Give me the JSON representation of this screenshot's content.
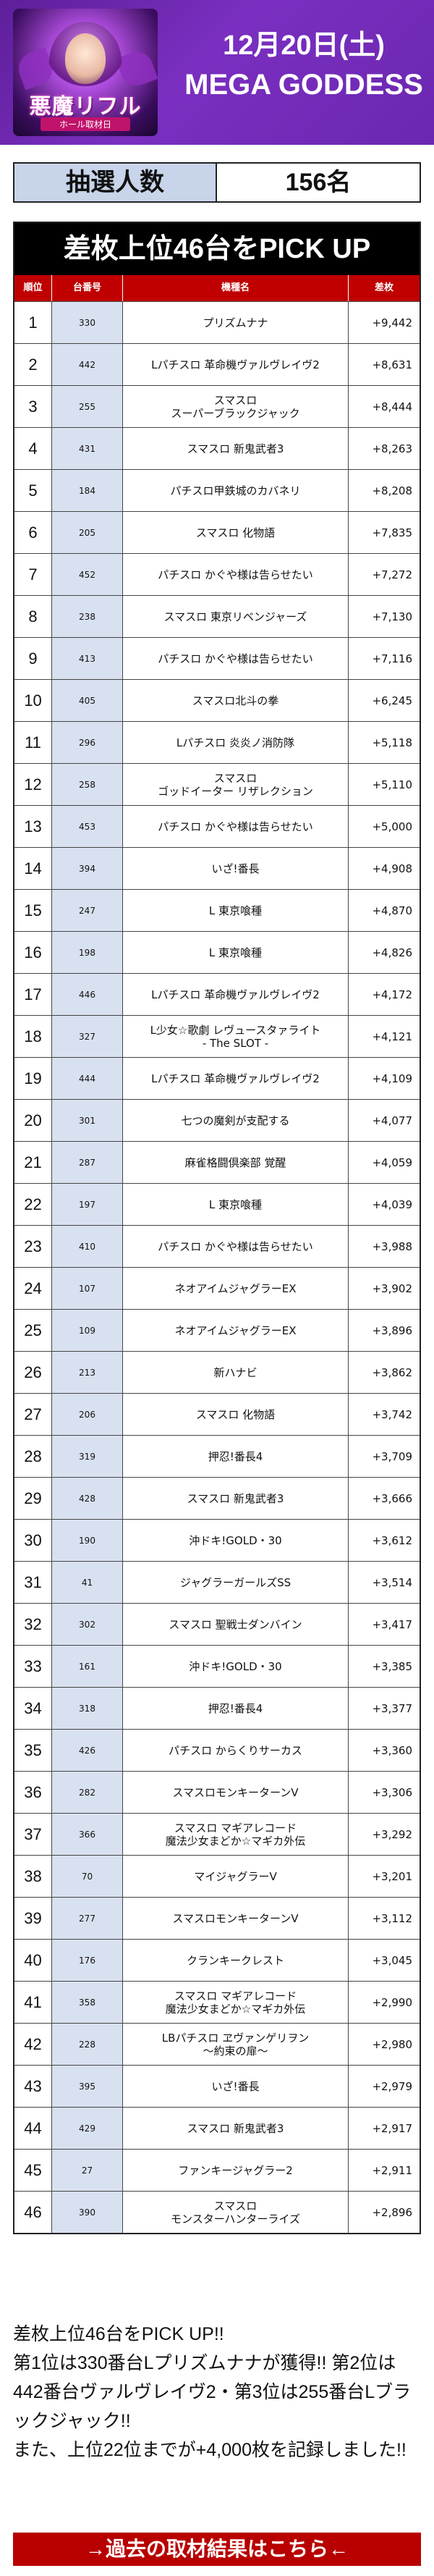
{
  "header": {
    "logo_title": "悪魔リフル",
    "logo_sub": "ホール取材日",
    "date": "12月20日(土)",
    "event_name": "MEGA GODDESS"
  },
  "lottery": {
    "label": "抽選人数",
    "value": "156名"
  },
  "ranking": {
    "title": "差枚上位46台をPICK UP",
    "columns": [
      "順位",
      "台番号",
      "機種名",
      "差枚"
    ],
    "rows": [
      {
        "rank": "1",
        "unit": "330",
        "machine": "プリズムナナ",
        "diff": "+9,442"
      },
      {
        "rank": "2",
        "unit": "442",
        "machine": "Lパチスロ 革命機ヴァルヴレイヴ2",
        "diff": "+8,631"
      },
      {
        "rank": "3",
        "unit": "255",
        "machine": "スマスロ\nスーパーブラックジャック",
        "diff": "+8,444"
      },
      {
        "rank": "4",
        "unit": "431",
        "machine": "スマスロ 新鬼武者3",
        "diff": "+8,263"
      },
      {
        "rank": "5",
        "unit": "184",
        "machine": "パチスロ甲鉄城のカバネリ",
        "diff": "+8,208"
      },
      {
        "rank": "6",
        "unit": "205",
        "machine": "スマスロ 化物語",
        "diff": "+7,835"
      },
      {
        "rank": "7",
        "unit": "452",
        "machine": "パチスロ かぐや様は告らせたい",
        "diff": "+7,272"
      },
      {
        "rank": "8",
        "unit": "238",
        "machine": "スマスロ 東京リベンジャーズ",
        "diff": "+7,130"
      },
      {
        "rank": "9",
        "unit": "413",
        "machine": "パチスロ かぐや様は告らせたい",
        "diff": "+7,116"
      },
      {
        "rank": "10",
        "unit": "405",
        "machine": "スマスロ北斗の拳",
        "diff": "+6,245"
      },
      {
        "rank": "11",
        "unit": "296",
        "machine": "Lパチスロ 炎炎ノ消防隊",
        "diff": "+5,118"
      },
      {
        "rank": "12",
        "unit": "258",
        "machine": "スマスロ\nゴッドイーター リザレクション",
        "diff": "+5,110"
      },
      {
        "rank": "13",
        "unit": "453",
        "machine": "パチスロ かぐや様は告らせたい",
        "diff": "+5,000"
      },
      {
        "rank": "14",
        "unit": "394",
        "machine": "いざ!番長",
        "diff": "+4,908"
      },
      {
        "rank": "15",
        "unit": "247",
        "machine": "L 東京喰種",
        "diff": "+4,870"
      },
      {
        "rank": "16",
        "unit": "198",
        "machine": "L 東京喰種",
        "diff": "+4,826"
      },
      {
        "rank": "17",
        "unit": "446",
        "machine": "Lパチスロ 革命機ヴァルヴレイヴ2",
        "diff": "+4,172"
      },
      {
        "rank": "18",
        "unit": "327",
        "machine": "L少女☆歌劇 レヴュースタァライト\n- The SLOT -",
        "diff": "+4,121"
      },
      {
        "rank": "19",
        "unit": "444",
        "machine": "Lパチスロ 革命機ヴァルヴレイヴ2",
        "diff": "+4,109"
      },
      {
        "rank": "20",
        "unit": "301",
        "machine": "七つの魔剣が支配する",
        "diff": "+4,077"
      },
      {
        "rank": "21",
        "unit": "287",
        "machine": "麻雀格闘倶楽部 覚醒",
        "diff": "+4,059"
      },
      {
        "rank": "22",
        "unit": "197",
        "machine": "L 東京喰種",
        "diff": "+4,039"
      },
      {
        "rank": "23",
        "unit": "410",
        "machine": "パチスロ かぐや様は告らせたい",
        "diff": "+3,988"
      },
      {
        "rank": "24",
        "unit": "107",
        "machine": "ネオアイムジャグラーEX",
        "diff": "+3,902"
      },
      {
        "rank": "25",
        "unit": "109",
        "machine": "ネオアイムジャグラーEX",
        "diff": "+3,896"
      },
      {
        "rank": "26",
        "unit": "213",
        "machine": "新ハナビ",
        "diff": "+3,862"
      },
      {
        "rank": "27",
        "unit": "206",
        "machine": "スマスロ 化物語",
        "diff": "+3,742"
      },
      {
        "rank": "28",
        "unit": "319",
        "machine": "押忍!番長4",
        "diff": "+3,709"
      },
      {
        "rank": "29",
        "unit": "428",
        "machine": "スマスロ 新鬼武者3",
        "diff": "+3,666"
      },
      {
        "rank": "30",
        "unit": "190",
        "machine": "沖ドキ!GOLD・30",
        "diff": "+3,612"
      },
      {
        "rank": "31",
        "unit": "41",
        "machine": "ジャグラーガールズSS",
        "diff": "+3,514"
      },
      {
        "rank": "32",
        "unit": "302",
        "machine": "スマスロ 聖戦士ダンバイン",
        "diff": "+3,417"
      },
      {
        "rank": "33",
        "unit": "161",
        "machine": "沖ドキ!GOLD・30",
        "diff": "+3,385"
      },
      {
        "rank": "34",
        "unit": "318",
        "machine": "押忍!番長4",
        "diff": "+3,377"
      },
      {
        "rank": "35",
        "unit": "426",
        "machine": "パチスロ からくりサーカス",
        "diff": "+3,360"
      },
      {
        "rank": "36",
        "unit": "282",
        "machine": "スマスロモンキーターンV",
        "diff": "+3,306"
      },
      {
        "rank": "37",
        "unit": "366",
        "machine": "スマスロ マギアレコード\n魔法少女まどか☆マギカ外伝",
        "diff": "+3,292"
      },
      {
        "rank": "38",
        "unit": "70",
        "machine": "マイジャグラーV",
        "diff": "+3,201"
      },
      {
        "rank": "39",
        "unit": "277",
        "machine": "スマスロモンキーターンV",
        "diff": "+3,112"
      },
      {
        "rank": "40",
        "unit": "176",
        "machine": "クランキークレスト",
        "diff": "+3,045"
      },
      {
        "rank": "41",
        "unit": "358",
        "machine": "スマスロ マギアレコード\n魔法少女まどか☆マギカ外伝",
        "diff": "+2,990"
      },
      {
        "rank": "42",
        "unit": "228",
        "machine": "LBパチスロ ヱヴァンゲリヲン\n～約束の扉～",
        "diff": "+2,980"
      },
      {
        "rank": "43",
        "unit": "395",
        "machine": "いざ!番長",
        "diff": "+2,979"
      },
      {
        "rank": "44",
        "unit": "429",
        "machine": "スマスロ 新鬼武者3",
        "diff": "+2,917"
      },
      {
        "rank": "45",
        "unit": "27",
        "machine": "ファンキージャグラー2",
        "diff": "+2,911"
      },
      {
        "rank": "46",
        "unit": "390",
        "machine": "スマスロ\nモンスターハンターライズ",
        "diff": "+2,896"
      }
    ]
  },
  "summary": "差枚上位46台をPICK UP!!\n第1位は330番台Lプリズムナナが獲得!! 第2位は442番台ヴァルヴレイヴ2・第3位は255番台Lブラックジャック!!\nまた、上位22位までが+4,000枚を記録しました!!",
  "cta": "→過去の取材結果はこちら←",
  "colors": {
    "banner": "#6b27b0",
    "table_header": "#c00000",
    "unit_cell": "#d8e1f0",
    "lottery_label": "#c7d4ea",
    "cta": "#b80000"
  }
}
